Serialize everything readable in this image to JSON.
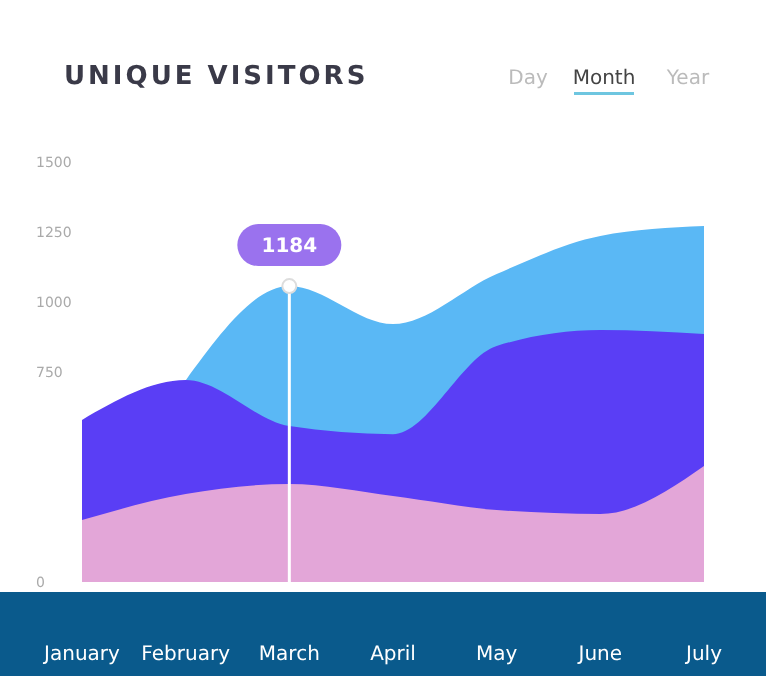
{
  "chart_data": {
    "type": "area",
    "title": "UNIQUE VISITORS",
    "categories": [
      "January",
      "February",
      "March",
      "April",
      "May",
      "June",
      "July"
    ],
    "series": [
      {
        "color": "#5ab8f5",
        "values": [
          null,
          720,
          1057,
          921,
          1100,
          1236,
          1271
        ]
      },
      {
        "color": "#5a3ef5",
        "values": [
          579,
          721,
          557,
          528,
          843,
          900,
          886
        ]
      },
      {
        "color": "#e3a6d8",
        "values": [
          221,
          314,
          350,
          307,
          257,
          243,
          414
        ]
      }
    ],
    "ylim": [
      0,
      1500
    ],
    "yticks": [
      0,
      750,
      1000,
      1250,
      1500
    ],
    "annotations": [
      {
        "text": "1184",
        "x": "March",
        "y": 1057
      },
      "Day",
      "Month",
      "Year"
    ]
  }
}
